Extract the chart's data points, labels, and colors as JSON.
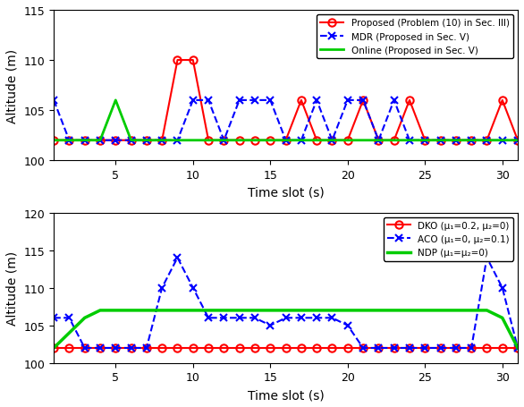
{
  "top": {
    "title": "",
    "xlabel": "Time slot (s)",
    "ylabel": "Altitude (m)",
    "ylim": [
      100,
      115
    ],
    "yticks": [
      100,
      105,
      110,
      115
    ],
    "xlim": [
      1,
      31
    ],
    "xticks": [
      5,
      10,
      15,
      20,
      25,
      30
    ],
    "proposed_x": [
      1,
      2,
      3,
      4,
      5,
      6,
      7,
      8,
      9,
      10,
      11,
      12,
      13,
      14,
      15,
      16,
      17,
      18,
      19,
      20,
      21,
      22,
      23,
      24,
      25,
      26,
      27,
      28,
      29,
      30,
      31
    ],
    "proposed_y": [
      102,
      102,
      102,
      102,
      102,
      102,
      102,
      102,
      110,
      110,
      102,
      102,
      102,
      102,
      102,
      102,
      106,
      102,
      102,
      102,
      106,
      102,
      102,
      106,
      102,
      102,
      102,
      102,
      102,
      106,
      102
    ],
    "mdr_x": [
      1,
      2,
      3,
      4,
      5,
      6,
      7,
      8,
      9,
      10,
      11,
      12,
      13,
      14,
      15,
      16,
      17,
      18,
      19,
      20,
      21,
      22,
      23,
      24,
      25,
      26,
      27,
      28,
      29,
      30,
      31
    ],
    "mdr_y": [
      106,
      102,
      102,
      102,
      102,
      102,
      102,
      102,
      102,
      106,
      106,
      102,
      106,
      106,
      106,
      102,
      102,
      106,
      102,
      106,
      106,
      102,
      106,
      102,
      102,
      102,
      102,
      102,
      102,
      102,
      102
    ],
    "online_x": [
      1,
      2,
      3,
      4,
      5,
      6,
      7,
      8,
      9,
      10,
      11,
      12,
      13,
      14,
      15,
      16,
      17,
      18,
      19,
      20,
      21,
      22,
      23,
      24,
      25,
      26,
      27,
      28,
      29,
      30,
      31
    ],
    "online_y": [
      102,
      102,
      102,
      102,
      106,
      102,
      102,
      102,
      102,
      102,
      102,
      102,
      102,
      102,
      102,
      102,
      102,
      102,
      102,
      102,
      102,
      102,
      102,
      102,
      102,
      102,
      102,
      102,
      102,
      102,
      102
    ],
    "legend": [
      "Proposed (Problem (10) in Sec. III)",
      "MDR (Proposed in Sec. V)",
      "Online (Proposed in Sec. V)"
    ]
  },
  "bottom": {
    "title": "",
    "xlabel": "Time slot (s)",
    "ylabel": "Altitude (m)",
    "ylim": [
      100,
      120
    ],
    "yticks": [
      100,
      105,
      110,
      115,
      120
    ],
    "xlim": [
      1,
      31
    ],
    "xticks": [
      5,
      10,
      15,
      20,
      25,
      30
    ],
    "dko_x": [
      1,
      2,
      3,
      4,
      5,
      6,
      7,
      8,
      9,
      10,
      11,
      12,
      13,
      14,
      15,
      16,
      17,
      18,
      19,
      20,
      21,
      22,
      23,
      24,
      25,
      26,
      27,
      28,
      29,
      30,
      31
    ],
    "dko_y": [
      102,
      102,
      102,
      102,
      102,
      102,
      102,
      102,
      102,
      102,
      102,
      102,
      102,
      102,
      102,
      102,
      102,
      102,
      102,
      102,
      102,
      102,
      102,
      102,
      102,
      102,
      102,
      102,
      102,
      102,
      102
    ],
    "aco_x": [
      1,
      2,
      3,
      4,
      5,
      6,
      7,
      8,
      9,
      10,
      11,
      12,
      13,
      14,
      15,
      16,
      17,
      18,
      19,
      20,
      21,
      22,
      23,
      24,
      25,
      26,
      27,
      28,
      29,
      30,
      31
    ],
    "aco_y": [
      106,
      106,
      102,
      102,
      102,
      102,
      102,
      110,
      114,
      110,
      106,
      106,
      106,
      106,
      105,
      106,
      106,
      106,
      106,
      105,
      102,
      102,
      102,
      102,
      102,
      102,
      102,
      102,
      114,
      110,
      102
    ],
    "ndp_x": [
      1,
      2,
      3,
      4,
      5,
      6,
      7,
      8,
      9,
      10,
      11,
      12,
      13,
      14,
      15,
      16,
      17,
      18,
      19,
      20,
      21,
      22,
      23,
      24,
      25,
      26,
      27,
      28,
      29,
      30,
      31
    ],
    "ndp_y": [
      102,
      104,
      106,
      107,
      107,
      107,
      107,
      107,
      107,
      107,
      107,
      107,
      107,
      107,
      107,
      107,
      107,
      107,
      107,
      107,
      107,
      107,
      107,
      107,
      107,
      107,
      107,
      107,
      107,
      106,
      102
    ],
    "legend": [
      "DKO (μ₁=0.2, μ₂=0)",
      "ACO (μ₁=0, μ₂=0.1)",
      "NDP (μ₁=μ₂=0)"
    ]
  },
  "colors": {
    "proposed": "#FF0000",
    "mdr": "#0000FF",
    "online": "#00CC00",
    "dko": "#FF0000",
    "aco": "#0000FF",
    "ndp": "#00CC00"
  }
}
